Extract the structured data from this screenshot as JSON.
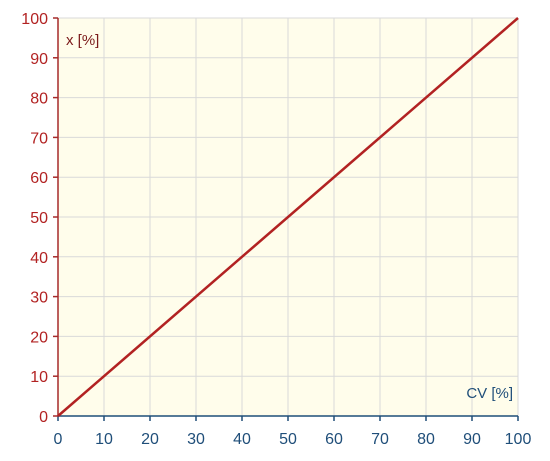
{
  "chart_data": {
    "type": "line",
    "xlabel": "CV [%]",
    "ylabel": "x [%]",
    "xlim": [
      0,
      100
    ],
    "ylim": [
      0,
      100
    ],
    "x_ticks": [
      0,
      10,
      20,
      30,
      40,
      50,
      60,
      70,
      80,
      90,
      100
    ],
    "y_ticks": [
      0,
      10,
      20,
      30,
      40,
      50,
      60,
      70,
      80,
      90,
      100
    ],
    "grid": true,
    "series": [
      {
        "x": [
          0,
          100
        ],
        "y": [
          0,
          100
        ]
      }
    ]
  },
  "colors": {
    "plot_background": "#fffdeb",
    "grid": "#d9d9d9",
    "y_axis": "#a52a2a",
    "x_axis": "#1f4e79",
    "series_line": "#b22222"
  }
}
